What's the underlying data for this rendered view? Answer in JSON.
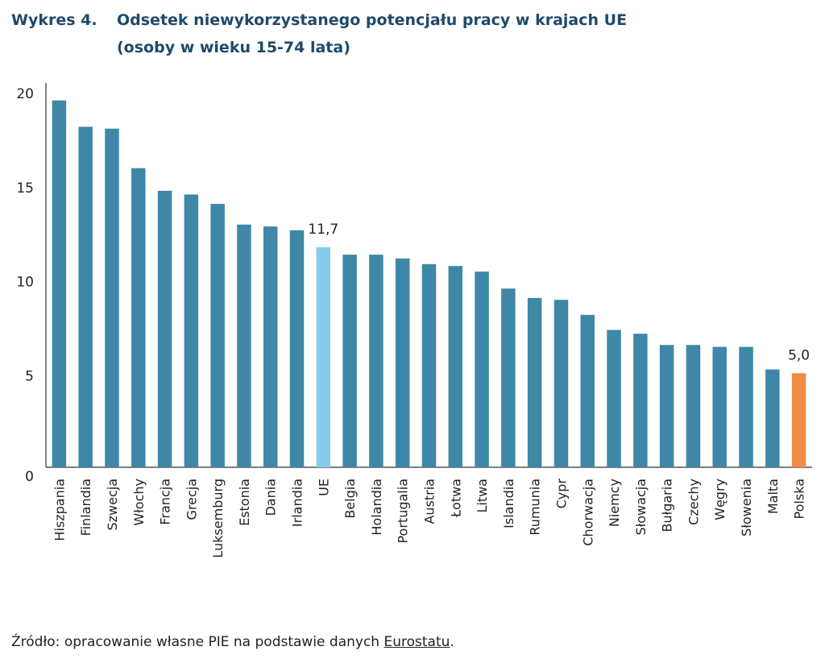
{
  "title": {
    "number": "Wykres 4.",
    "line1": "Odsetek niewykorzystanego potencjału pracy w krajach UE",
    "line2": "(osoby w wieku 15-74 lata)"
  },
  "source": {
    "prefix": "Źródło: opracowanie własne PIE na podstawie danych ",
    "link": "Eurostatu",
    "suffix": "."
  },
  "colors": {
    "default": "#3f87a6",
    "highlight_eu": "#86cdec",
    "highlight_pl": "#f38b45",
    "axis": "#333333"
  },
  "chart_data": {
    "type": "bar",
    "title": "Odsetek niewykorzystanego potencjału pracy w krajach UE (osoby w wieku 15-74 lata)",
    "xlabel": "",
    "ylabel": "",
    "ylim": [
      0,
      20
    ],
    "yticks": [
      0,
      5,
      10,
      15,
      20
    ],
    "grid": false,
    "legend": "none",
    "categories": [
      "Hiszpania",
      "Finlandia",
      "Szwecja",
      "Włochy",
      "Francja",
      "Grecja",
      "Luksemburg",
      "Estonia",
      "Dania",
      "Irlandia",
      "UE",
      "Belgia",
      "Holandia",
      "Portugalia",
      "Austria",
      "Łotwa",
      "Litwa",
      "Islandia",
      "Rumunia",
      "Cypr",
      "Chorwacja",
      "Niemcy",
      "Słowacja",
      "Bułgaria",
      "Czechy",
      "Węgry",
      "Słowenia",
      "Malta",
      "Polska"
    ],
    "values": [
      19.5,
      18.1,
      18.0,
      15.9,
      14.7,
      14.5,
      14.0,
      12.9,
      12.8,
      12.6,
      11.7,
      11.3,
      11.3,
      11.1,
      10.8,
      10.7,
      10.4,
      9.5,
      9.0,
      8.9,
      8.1,
      7.3,
      7.1,
      6.5,
      6.5,
      6.4,
      6.4,
      5.2,
      5.0
    ],
    "highlight": {
      "UE": "highlight_eu",
      "Polska": "highlight_pl"
    },
    "data_labels": [
      {
        "category": "UE",
        "text": "11,7"
      },
      {
        "category": "Polska",
        "text": "5,0"
      }
    ]
  }
}
